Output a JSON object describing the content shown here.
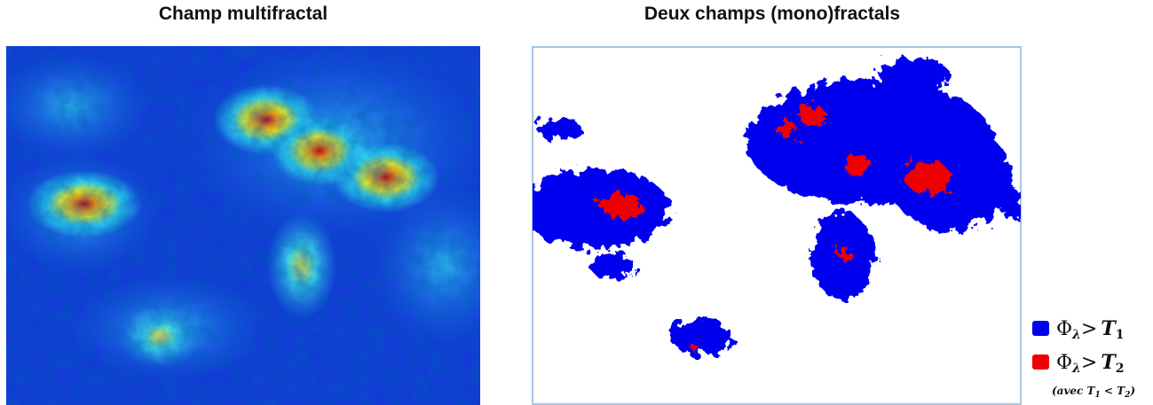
{
  "left_panel": {
    "title": "Champ multifractal"
  },
  "right_panel": {
    "title": "Deux champs (mono)fractals",
    "legend": [
      {
        "symbol": "Φ",
        "symbol_sub": "λ",
        "relation": ">",
        "threshold": "T",
        "threshold_sub": "1"
      },
      {
        "symbol": "Φ",
        "symbol_sub": "λ",
        "relation": ">",
        "threshold": "T",
        "threshold_sub": "2"
      }
    ],
    "note": {
      "open": "(avec ",
      "t1": "T",
      "t1_sub": "1",
      "relation": " < ",
      "t2": "T",
      "t2_sub": "2",
      "close": ")"
    }
  }
}
